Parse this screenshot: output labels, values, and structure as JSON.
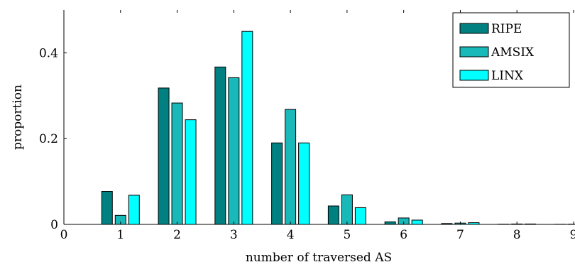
{
  "chart_data": {
    "type": "bar",
    "title": "",
    "xlabel": "number of traversed AS",
    "ylabel": "proportion",
    "xlim": [
      0,
      9
    ],
    "ylim": [
      0,
      0.5
    ],
    "x": [
      0,
      1,
      2,
      3,
      4,
      5,
      6,
      7,
      8,
      9
    ],
    "x_ticks": [
      "0",
      "1",
      "2",
      "3",
      "4",
      "5",
      "6",
      "7",
      "8",
      "9"
    ],
    "y_ticks": [
      {
        "value": 0,
        "label": "0"
      },
      {
        "value": 0.2,
        "label": "0.2"
      },
      {
        "value": 0.4,
        "label": "0.4"
      }
    ],
    "grid": false,
    "legend_position": "top-right",
    "series": [
      {
        "name": "RIPE",
        "color": "#008080",
        "values": [
          0,
          0.077,
          0.318,
          0.367,
          0.19,
          0.043,
          0.006,
          0.002,
          0.0005,
          0.0003
        ]
      },
      {
        "name": "AMSIX",
        "color": "#1ab9b9",
        "values": [
          0,
          0.021,
          0.283,
          0.342,
          0.268,
          0.069,
          0.015,
          0.003,
          0.001,
          0.0005
        ]
      },
      {
        "name": "LINX",
        "color": "#00ffff",
        "values": [
          0,
          0.068,
          0.244,
          0.45,
          0.19,
          0.039,
          0.01,
          0.004,
          0.001,
          0.0005
        ]
      }
    ]
  }
}
